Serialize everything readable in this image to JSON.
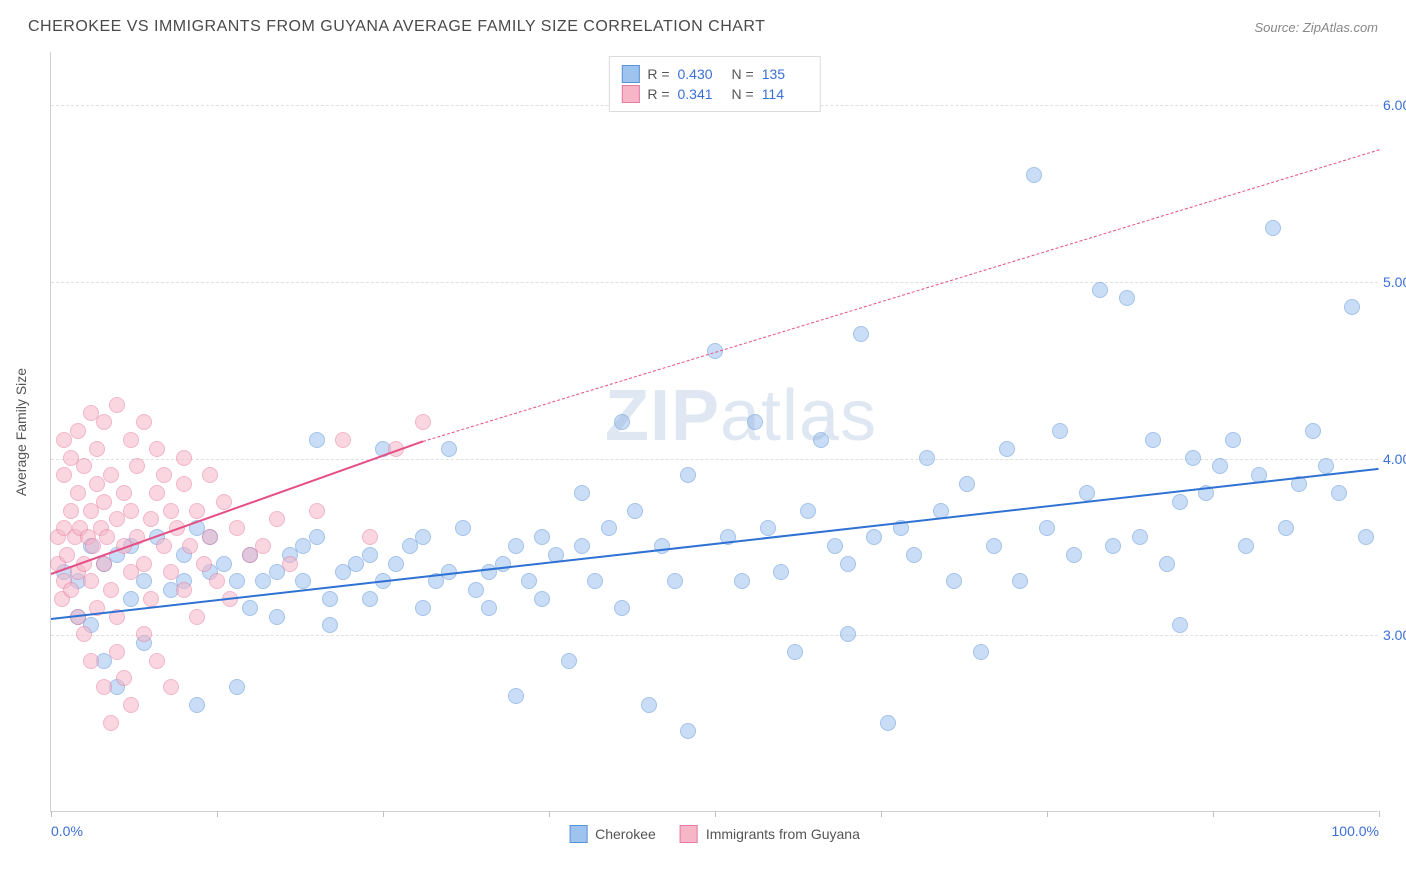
{
  "header": {
    "title": "CHEROKEE VS IMMIGRANTS FROM GUYANA AVERAGE FAMILY SIZE CORRELATION CHART",
    "source": "Source: ZipAtlas.com"
  },
  "watermark": {
    "part1": "ZIP",
    "part2": "atlas"
  },
  "chart": {
    "type": "scatter",
    "background_color": "#ffffff",
    "grid_color": "#e0e0e0",
    "grid_dash": "4,4",
    "axis_color": "#d0d0d0",
    "tick_label_color": "#3b6fd6",
    "axis_title_color": "#555555",
    "yaxis_title": "Average Family Size",
    "xlim": [
      0,
      100
    ],
    "ylim": [
      2.0,
      6.3
    ],
    "xtick_positions": [
      0,
      12.5,
      25,
      37.5,
      50,
      62.5,
      75,
      87.5,
      100
    ],
    "xtick_labels": {
      "left": "0.0%",
      "right": "100.0%"
    },
    "ytick_positions": [
      3.0,
      4.0,
      5.0,
      6.0
    ],
    "ytick_labels": [
      "3.00",
      "4.00",
      "5.00",
      "6.00"
    ],
    "marker_radius": 8,
    "marker_opacity": 0.55,
    "marker_border_opacity": 0.9,
    "series": [
      {
        "label": "Cherokee",
        "fill_color": "#9ec3ef",
        "border_color": "#5a93d8",
        "line_color": "#2f72d4",
        "R": "0.430",
        "N": "135",
        "trend_start": [
          0,
          3.1
        ],
        "trend_solid_end": [
          100,
          3.95
        ],
        "trend_dash_end": null,
        "points": [
          [
            1,
            3.35
          ],
          [
            2,
            3.3
          ],
          [
            2,
            3.1
          ],
          [
            3,
            3.5
          ],
          [
            3,
            3.05
          ],
          [
            4,
            3.4
          ],
          [
            4,
            2.85
          ],
          [
            5,
            3.45
          ],
          [
            5,
            2.7
          ],
          [
            6,
            3.5
          ],
          [
            6,
            3.2
          ],
          [
            7,
            3.3
          ],
          [
            7,
            2.95
          ],
          [
            8,
            3.55
          ],
          [
            9,
            3.25
          ],
          [
            10,
            3.3
          ],
          [
            10,
            3.45
          ],
          [
            11,
            3.6
          ],
          [
            11,
            2.6
          ],
          [
            12,
            3.35
          ],
          [
            12,
            3.55
          ],
          [
            13,
            3.4
          ],
          [
            14,
            3.3
          ],
          [
            14,
            2.7
          ],
          [
            15,
            3.15
          ],
          [
            15,
            3.45
          ],
          [
            16,
            3.3
          ],
          [
            17,
            3.35
          ],
          [
            17,
            3.1
          ],
          [
            18,
            3.45
          ],
          [
            19,
            3.5
          ],
          [
            19,
            3.3
          ],
          [
            20,
            3.55
          ],
          [
            20,
            4.1
          ],
          [
            21,
            3.2
          ],
          [
            21,
            3.05
          ],
          [
            22,
            3.35
          ],
          [
            23,
            3.4
          ],
          [
            24,
            3.45
          ],
          [
            24,
            3.2
          ],
          [
            25,
            3.3
          ],
          [
            25,
            4.05
          ],
          [
            26,
            3.4
          ],
          [
            27,
            3.5
          ],
          [
            28,
            3.15
          ],
          [
            28,
            3.55
          ],
          [
            29,
            3.3
          ],
          [
            30,
            3.35
          ],
          [
            30,
            4.05
          ],
          [
            31,
            3.6
          ],
          [
            32,
            3.25
          ],
          [
            33,
            3.35
          ],
          [
            33,
            3.15
          ],
          [
            34,
            3.4
          ],
          [
            35,
            2.65
          ],
          [
            35,
            3.5
          ],
          [
            36,
            3.3
          ],
          [
            37,
            3.55
          ],
          [
            37,
            3.2
          ],
          [
            38,
            3.45
          ],
          [
            39,
            2.85
          ],
          [
            40,
            3.5
          ],
          [
            40,
            3.8
          ],
          [
            41,
            3.3
          ],
          [
            42,
            3.6
          ],
          [
            43,
            4.2
          ],
          [
            43,
            3.15
          ],
          [
            44,
            3.7
          ],
          [
            45,
            2.6
          ],
          [
            46,
            3.5
          ],
          [
            47,
            3.3
          ],
          [
            48,
            2.45
          ],
          [
            48,
            3.9
          ],
          [
            50,
            4.6
          ],
          [
            51,
            3.55
          ],
          [
            52,
            3.3
          ],
          [
            53,
            4.2
          ],
          [
            54,
            3.6
          ],
          [
            55,
            3.35
          ],
          [
            56,
            2.9
          ],
          [
            57,
            3.7
          ],
          [
            58,
            4.1
          ],
          [
            59,
            3.5
          ],
          [
            60,
            3.4
          ],
          [
            60,
            3.0
          ],
          [
            61,
            4.7
          ],
          [
            62,
            3.55
          ],
          [
            63,
            2.5
          ],
          [
            64,
            3.6
          ],
          [
            65,
            3.45
          ],
          [
            66,
            4.0
          ],
          [
            67,
            3.7
          ],
          [
            68,
            3.3
          ],
          [
            69,
            3.85
          ],
          [
            70,
            2.9
          ],
          [
            71,
            3.5
          ],
          [
            72,
            4.05
          ],
          [
            73,
            3.3
          ],
          [
            74,
            5.6
          ],
          [
            75,
            3.6
          ],
          [
            76,
            4.15
          ],
          [
            77,
            3.45
          ],
          [
            78,
            3.8
          ],
          [
            79,
            4.95
          ],
          [
            80,
            3.5
          ],
          [
            81,
            4.9
          ],
          [
            82,
            3.55
          ],
          [
            83,
            4.1
          ],
          [
            84,
            3.4
          ],
          [
            85,
            3.75
          ],
          [
            85,
            3.05
          ],
          [
            86,
            4.0
          ],
          [
            87,
            3.8
          ],
          [
            88,
            3.95
          ],
          [
            89,
            4.1
          ],
          [
            90,
            3.5
          ],
          [
            91,
            3.9
          ],
          [
            92,
            5.3
          ],
          [
            93,
            3.6
          ],
          [
            94,
            3.85
          ],
          [
            95,
            4.15
          ],
          [
            96,
            3.95
          ],
          [
            97,
            3.8
          ],
          [
            98,
            4.85
          ],
          [
            99,
            3.55
          ]
        ]
      },
      {
        "label": "Immigrants from Guyana",
        "fill_color": "#f6b6c8",
        "border_color": "#e77aa0",
        "line_color": "#e54f86",
        "R": "0.341",
        "N": "114",
        "trend_start": [
          0,
          3.35
        ],
        "trend_solid_end": [
          28,
          4.1
        ],
        "trend_dash_end": [
          100,
          5.75
        ],
        "points": [
          [
            0.5,
            3.4
          ],
          [
            0.5,
            3.55
          ],
          [
            0.8,
            3.2
          ],
          [
            1,
            3.6
          ],
          [
            1,
            3.9
          ],
          [
            1,
            3.3
          ],
          [
            1,
            4.1
          ],
          [
            1.2,
            3.45
          ],
          [
            1.5,
            3.7
          ],
          [
            1.5,
            3.25
          ],
          [
            1.5,
            4.0
          ],
          [
            1.8,
            3.55
          ],
          [
            2,
            3.8
          ],
          [
            2,
            3.35
          ],
          [
            2,
            3.1
          ],
          [
            2,
            4.15
          ],
          [
            2.2,
            3.6
          ],
          [
            2.5,
            3.4
          ],
          [
            2.5,
            3.95
          ],
          [
            2.5,
            3.0
          ],
          [
            2.8,
            3.55
          ],
          [
            3,
            3.7
          ],
          [
            3,
            4.25
          ],
          [
            3,
            3.3
          ],
          [
            3,
            2.85
          ],
          [
            3.2,
            3.5
          ],
          [
            3.5,
            3.85
          ],
          [
            3.5,
            3.15
          ],
          [
            3.5,
            4.05
          ],
          [
            3.8,
            3.6
          ],
          [
            4,
            3.4
          ],
          [
            4,
            3.75
          ],
          [
            4,
            2.7
          ],
          [
            4,
            4.2
          ],
          [
            4.2,
            3.55
          ],
          [
            4.5,
            3.9
          ],
          [
            4.5,
            3.25
          ],
          [
            4.5,
            2.5
          ],
          [
            5,
            3.65
          ],
          [
            5,
            4.3
          ],
          [
            5,
            3.1
          ],
          [
            5,
            2.9
          ],
          [
            5.5,
            3.5
          ],
          [
            5.5,
            3.8
          ],
          [
            5.5,
            2.75
          ],
          [
            6,
            3.7
          ],
          [
            6,
            4.1
          ],
          [
            6,
            3.35
          ],
          [
            6,
            2.6
          ],
          [
            6.5,
            3.55
          ],
          [
            6.5,
            3.95
          ],
          [
            7,
            3.4
          ],
          [
            7,
            4.2
          ],
          [
            7,
            3.0
          ],
          [
            7.5,
            3.65
          ],
          [
            7.5,
            3.2
          ],
          [
            8,
            3.8
          ],
          [
            8,
            4.05
          ],
          [
            8,
            2.85
          ],
          [
            8.5,
            3.5
          ],
          [
            8.5,
            3.9
          ],
          [
            9,
            3.7
          ],
          [
            9,
            3.35
          ],
          [
            9,
            2.7
          ],
          [
            9.5,
            3.6
          ],
          [
            10,
            4.0
          ],
          [
            10,
            3.25
          ],
          [
            10,
            3.85
          ],
          [
            10.5,
            3.5
          ],
          [
            11,
            3.7
          ],
          [
            11,
            3.1
          ],
          [
            11.5,
            3.4
          ],
          [
            12,
            3.9
          ],
          [
            12,
            3.55
          ],
          [
            12.5,
            3.3
          ],
          [
            13,
            3.75
          ],
          [
            13.5,
            3.2
          ],
          [
            14,
            3.6
          ],
          [
            15,
            3.45
          ],
          [
            16,
            3.5
          ],
          [
            17,
            3.65
          ],
          [
            18,
            3.4
          ],
          [
            20,
            3.7
          ],
          [
            22,
            4.1
          ],
          [
            24,
            3.55
          ],
          [
            26,
            4.05
          ],
          [
            28,
            4.2
          ]
        ]
      }
    ],
    "legend_top": {
      "metrics": [
        "R =",
        "N ="
      ]
    },
    "legend_bottom_labels": [
      "Cherokee",
      "Immigrants from Guyana"
    ]
  }
}
